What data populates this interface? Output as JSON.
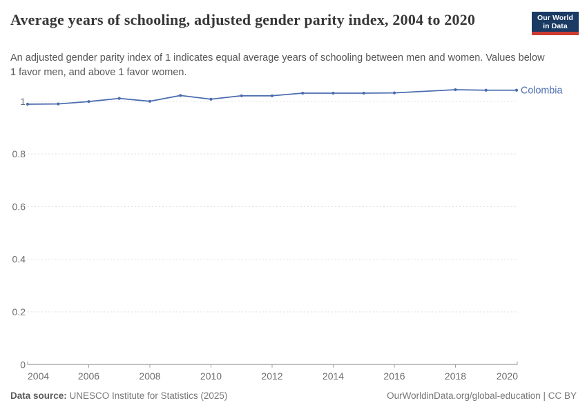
{
  "header": {
    "title": "Average years of schooling, adjusted gender parity index, 2004 to 2020",
    "subtitle": "An adjusted gender parity index of 1 indicates equal average years of schooling between men and women. Values below 1 favor men, and above 1 favor women."
  },
  "logo": {
    "line1": "Our World",
    "line2": "in Data",
    "bg_color": "#1a3a64",
    "bar_color": "#cc3b31"
  },
  "chart_data": {
    "type": "line",
    "title": "Average years of schooling, adjusted gender parity index, 2004 to 2020",
    "xlabel": "",
    "ylabel": "",
    "xlim": [
      2004,
      2020
    ],
    "ylim": [
      0,
      1.08
    ],
    "xticks": [
      2004,
      2006,
      2008,
      2010,
      2012,
      2014,
      2016,
      2018,
      2020
    ],
    "yticks": [
      0,
      0.2,
      0.4,
      0.6,
      0.8,
      1
    ],
    "grid": "horizontal-dashed",
    "legend_position": "end-of-line-label",
    "series": [
      {
        "name": "Colombia",
        "color": "#4b6cae",
        "x": [
          2004,
          2005,
          2006,
          2007,
          2008,
          2009,
          2010,
          2011,
          2012,
          2013,
          2014,
          2015,
          2016,
          2018,
          2019,
          2020
        ],
        "values": [
          0.989,
          0.99,
          0.999,
          1.011,
          1.0,
          1.022,
          1.008,
          1.021,
          1.021,
          1.031,
          1.031,
          1.031,
          1.032,
          1.044,
          1.042,
          1.042
        ]
      }
    ],
    "axis_color": "#9e9e9e",
    "gridline_color": "#dddddd",
    "tick_label_color": "#6e6e6e"
  },
  "footer": {
    "datasource_label": "Data source:",
    "datasource_value": " UNESCO Institute for Statistics (2025)",
    "attribution": "OurWorldinData.org/global-education | CC BY"
  }
}
